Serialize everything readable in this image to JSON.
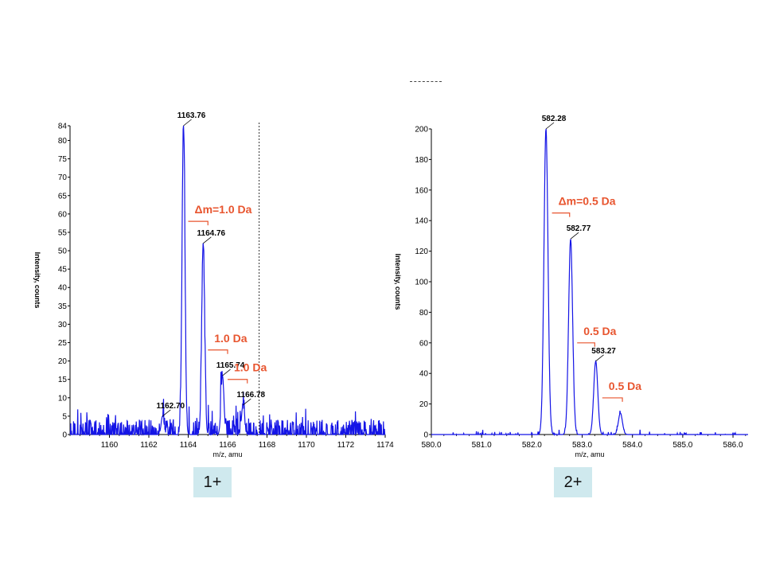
{
  "panels": [
    {
      "badge": "1+",
      "chart_data": {
        "type": "line",
        "xlabel": "m/z, amu",
        "ylabel": "Intensity, counts",
        "xlim": [
          1158,
          1174
        ],
        "ylim": [
          0,
          84
        ],
        "xticks": [
          "1160",
          "1162",
          "1164",
          "1166",
          "1168",
          "1170",
          "1172",
          "1174"
        ],
        "xtick_values": [
          1160,
          1162,
          1164,
          1166,
          1168,
          1170,
          1172,
          1174
        ],
        "yticks": [
          "0",
          "5",
          "10",
          "15",
          "20",
          "25",
          "30",
          "35",
          "40",
          "45",
          "50",
          "55",
          "60",
          "65",
          "70",
          "75",
          "80",
          "84"
        ],
        "ytick_values": [
          0,
          5,
          10,
          15,
          20,
          25,
          30,
          35,
          40,
          45,
          50,
          55,
          60,
          65,
          70,
          75,
          80,
          84
        ],
        "peaks": [
          {
            "x": 1162.7,
            "y": 5,
            "label": "1162.70"
          },
          {
            "x": 1163.76,
            "y": 84,
            "label": "1163.76"
          },
          {
            "x": 1164.76,
            "y": 52,
            "label": "1164.76"
          },
          {
            "x": 1165.74,
            "y": 16,
            "label": "1165.74"
          },
          {
            "x": 1166.78,
            "y": 8,
            "label": "1166.78"
          }
        ],
        "noise_level": 4,
        "marker_line_x": 1167.6,
        "annotations": [
          {
            "text": "Δm=1.0 Da",
            "x1": 1164.0,
            "x2": 1165.0,
            "y": 58
          },
          {
            "text": "1.0 Da",
            "x1": 1165.0,
            "x2": 1166.0,
            "y": 23
          },
          {
            "text": "1.0 Da",
            "x1": 1166.0,
            "x2": 1167.0,
            "y": 15
          }
        ]
      }
    },
    {
      "badge": "2+",
      "chart_data": {
        "type": "line",
        "xlabel": "m/z, amu",
        "ylabel": "Intensity, counts",
        "xlim": [
          580.0,
          586.3
        ],
        "ylim": [
          0,
          200
        ],
        "xticks": [
          "580.0",
          "581.0",
          "582.0",
          "583.0",
          "584.0",
          "585.0",
          "586.0"
        ],
        "xtick_values": [
          580.0,
          581.0,
          582.0,
          583.0,
          584.0,
          585.0,
          586.0
        ],
        "yticks": [
          "0",
          "20",
          "40",
          "60",
          "80",
          "100",
          "120",
          "140",
          "160",
          "180",
          "200"
        ],
        "ytick_values": [
          0,
          20,
          40,
          60,
          80,
          100,
          120,
          140,
          160,
          180,
          200
        ],
        "peaks": [
          {
            "x": 582.28,
            "y": 200,
            "label": "582.28"
          },
          {
            "x": 582.77,
            "y": 128,
            "label": "582.77"
          },
          {
            "x": 583.27,
            "y": 48,
            "label": "583.27"
          },
          {
            "x": 583.76,
            "y": 14,
            "label": ""
          }
        ],
        "noise_level": 2,
        "marker_line_x": null,
        "annotations": [
          {
            "text": "Δm=0.5 Da",
            "x1": 582.4,
            "x2": 582.75,
            "y": 145
          },
          {
            "text": "0.5 Da",
            "x1": 582.9,
            "x2": 583.25,
            "y": 60
          },
          {
            "text": "0.5 Da",
            "x1": 583.4,
            "x2": 583.8,
            "y": 24
          }
        ]
      }
    }
  ]
}
